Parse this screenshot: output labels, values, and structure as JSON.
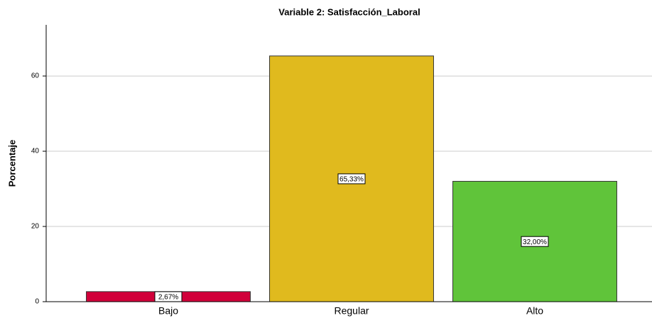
{
  "chart_data": {
    "type": "bar",
    "title": "Variable 2: Satisfacción_Laboral",
    "y_label": "Porcentaje",
    "categories": [
      "Bajo",
      "Regular",
      "Alto"
    ],
    "values": [
      2.67,
      65.33,
      32.0
    ],
    "value_labels": [
      "2,67%",
      "65,33%",
      "32,00%"
    ],
    "colors": [
      "#d1003a",
      "#e0ba1e",
      "#60c43a"
    ],
    "ylim": [
      0,
      73.6
    ],
    "yticks": [
      0,
      20,
      40,
      60
    ],
    "grid": true
  }
}
